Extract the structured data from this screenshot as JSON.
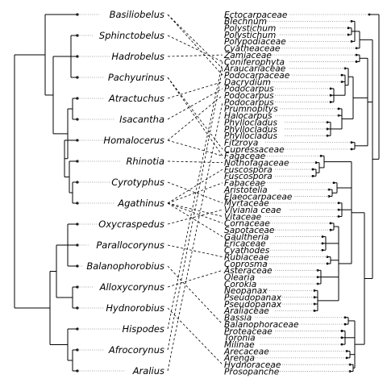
{
  "left_taxa": [
    "Basiliobelus",
    "Sphinctobelus",
    "Hadrobelus",
    "Pachyurinus",
    "Atractuchus",
    "Isacantha",
    "Homalocerus",
    "Rhinotia",
    "Cyrotyphus",
    "Agathinus",
    "Oxycraspedus",
    "Parallocorynus",
    "Balanophorobius",
    "Alloxycorynus",
    "Hydnorobius",
    "Hispodes",
    "Afrocorynus",
    "Aralius"
  ],
  "right_taxa": [
    "Ectocarpaceae",
    "Blechnum",
    "Polystichum",
    "Polystichum",
    "Polypodiaceae",
    "Cyatheaceae",
    "Zamiaceae",
    "Coniferophyta",
    "Araucariaceae",
    "Podocarpaceae",
    "Dacrydium",
    "Podocarpus",
    "Podocarpus",
    "Podocarpus",
    "Prumnopitys",
    "Halocarpus",
    "Phyllocladus",
    "Phyllocladus",
    "Phyllocladus",
    "Fitzroya",
    "Cupressaceae",
    "Fagaceae",
    "Nothofagaceae",
    "Fuscospora",
    "Fuscospora",
    "Fabaceae",
    "Aristotelia",
    "Elaeocarpaceae",
    "Myrtaceae",
    "Viviania ceae",
    "Vitaceae",
    "Cornaceae",
    "Sapotaceae",
    "Gaultheria",
    "Ericaceae",
    "Cyathodes",
    "Rubiaceae",
    "Coprosma",
    "Asteraceae",
    "Olearia",
    "Corokia",
    "Neopanax",
    "Pseudopanax",
    "Pseudopanax",
    "Araliaceae",
    "Bassia",
    "Balanophoraceae",
    "Proteaceae",
    "Toronia",
    "Milinae",
    "Arecaceae",
    "Arenga",
    "Hydnoraceae",
    "Prosopanche"
  ],
  "associations": [
    [
      0,
      8
    ],
    [
      0,
      9
    ],
    [
      1,
      7
    ],
    [
      2,
      6
    ],
    [
      3,
      20
    ],
    [
      3,
      21
    ],
    [
      4,
      10
    ],
    [
      5,
      11
    ],
    [
      6,
      12
    ],
    [
      6,
      21
    ],
    [
      7,
      22
    ],
    [
      8,
      28
    ],
    [
      9,
      23
    ],
    [
      9,
      25
    ],
    [
      9,
      30
    ],
    [
      9,
      31
    ],
    [
      9,
      33
    ],
    [
      10,
      29
    ],
    [
      11,
      36
    ],
    [
      12,
      46
    ],
    [
      13,
      38
    ],
    [
      14,
      52
    ],
    [
      15,
      7
    ],
    [
      16,
      8
    ],
    [
      17,
      13
    ]
  ]
}
